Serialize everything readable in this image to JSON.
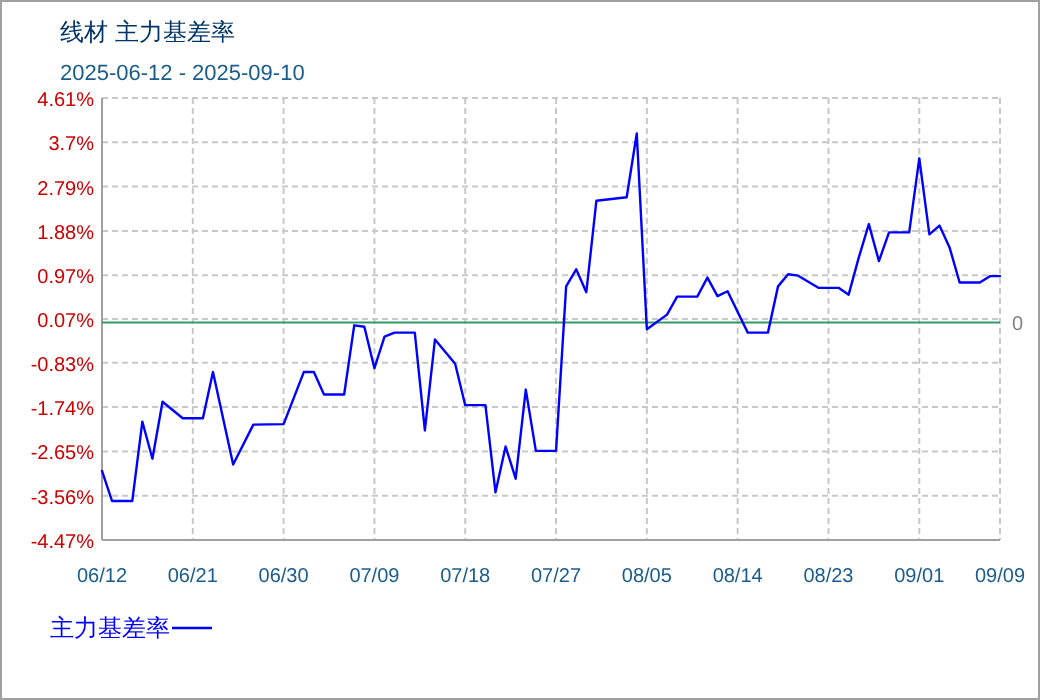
{
  "chart_data": {
    "type": "line",
    "title": "线材  主力基差率",
    "subtitle": "2025-06-12 - 2025-09-10",
    "x": [
      "--06-12",
      "--06-13",
      "--06-15",
      "--06-16",
      "--06-17",
      "--06-18",
      "--06-20",
      "--06-22",
      "--06-23",
      "--06-25",
      "--06-27",
      "--06-30",
      "--07-02",
      "--07-03",
      "--07-04",
      "--07-06",
      "--07-07",
      "--07-08",
      "--07-09",
      "--07-10",
      "--07-11",
      "--07-13",
      "--07-14",
      "--07-15",
      "--07-17",
      "--07-18",
      "--07-20",
      "--07-21",
      "--07-22",
      "--07-23",
      "--07-24",
      "--07-25",
      "--07-27",
      "--07-28",
      "--07-29",
      "--07-30",
      "--07-31",
      "--08-03",
      "--08-04",
      "--08-05",
      "--08-07",
      "--08-08",
      "--08-10",
      "--08-11",
      "--08-12",
      "--08-13",
      "--08-15",
      "--08-17",
      "--08-18",
      "--08-19",
      "--08-20",
      "--08-22",
      "--08-24",
      "--08-25",
      "--08-26",
      "--08-27",
      "--08-28",
      "--08-29",
      "--08-31",
      "--09-01",
      "--09-02",
      "--09-03",
      "--09-04",
      "--09-05",
      "--09-07",
      "--09-08",
      "--09-09"
    ],
    "series": [
      {
        "name": "主力基差率",
        "color": "#0000ff",
        "values": [
          -3.05,
          -3.67,
          -3.67,
          -2.04,
          -2.8,
          -1.63,
          -1.97,
          -1.97,
          -1.02,
          -2.92,
          -2.1,
          -2.09,
          -1.02,
          -1.02,
          -1.48,
          -1.48,
          -0.06,
          -0.09,
          -0.94,
          -0.29,
          -0.21,
          -0.21,
          -2.22,
          -0.35,
          -0.85,
          -1.7,
          -1.7,
          -3.49,
          -2.55,
          -3.21,
          -1.38,
          -2.64,
          -2.64,
          0.74,
          1.09,
          0.62,
          2.5,
          2.57,
          3.88,
          -0.14,
          0.16,
          0.53,
          0.53,
          0.92,
          0.54,
          0.64,
          -0.21,
          -0.21,
          0.74,
          0.99,
          0.96,
          0.71,
          0.71,
          0.57,
          1.33,
          2.02,
          1.26,
          1.85,
          1.85,
          3.37,
          1.81,
          1.99,
          1.54,
          0.82,
          0.82,
          0.95,
          0.95
        ]
      }
    ],
    "xlim": [
      "--06-12",
      "--09-09"
    ],
    "xticks": [
      {
        "value": "--06-12",
        "label": "06/12"
      },
      {
        "value": "--06-21",
        "label": "06/21"
      },
      {
        "value": "--06-30",
        "label": "06/30"
      },
      {
        "value": "--07-09",
        "label": "07/09"
      },
      {
        "value": "--07-18",
        "label": "07/18"
      },
      {
        "value": "--07-27",
        "label": "07/27"
      },
      {
        "value": "--08-05",
        "label": "08/05"
      },
      {
        "value": "--08-14",
        "label": "08/14"
      },
      {
        "value": "--08-23",
        "label": "08/23"
      },
      {
        "value": "--09-01",
        "label": "09/01"
      },
      {
        "value": "--09-09",
        "label": "09/09"
      }
    ],
    "ylim": [
      -4.47,
      4.61
    ],
    "yticks": [
      {
        "value": -4.47,
        "label": "-4.47%"
      },
      {
        "value": -3.56,
        "label": "-3.56%"
      },
      {
        "value": -2.65,
        "label": "-2.65%"
      },
      {
        "value": -1.74,
        "label": "-1.74%"
      },
      {
        "value": -0.83,
        "label": "-0.83%"
      },
      {
        "value": 0.07,
        "label": "0.07%"
      },
      {
        "value": 0.97,
        "label": "0.97%"
      },
      {
        "value": 1.88,
        "label": "1.88%"
      },
      {
        "value": 2.79,
        "label": "2.79%"
      },
      {
        "value": 3.7,
        "label": "3.7%"
      },
      {
        "value": 4.61,
        "label": "4.61%"
      }
    ],
    "ref_lines": [
      {
        "axis": "y",
        "value": 0,
        "label": "0",
        "color": "#339966"
      }
    ],
    "grid": true,
    "legend": "bottom left",
    "marker": "none",
    "line_style": "solid"
  }
}
